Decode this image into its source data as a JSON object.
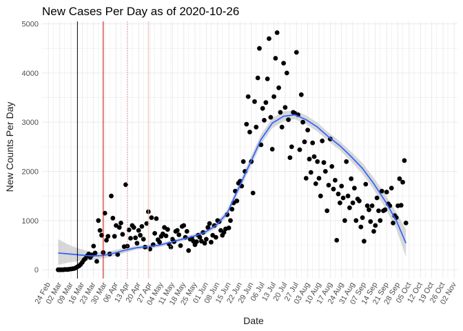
{
  "chart_data": {
    "type": "scatter",
    "title": "New Cases Per Day as of 2020-10-26",
    "xlabel": "Date",
    "ylabel": "New Counts Per Day",
    "xlim": [
      "2020-02-20",
      "2020-11-04"
    ],
    "ylim": [
      -180,
      5050
    ],
    "y_ticks": [
      0,
      1000,
      2000,
      3000,
      4000,
      5000
    ],
    "x_ticks": [
      {
        "date": "2020-02-24",
        "label": "24 Feb"
      },
      {
        "date": "2020-03-02",
        "label": "02 Mar"
      },
      {
        "date": "2020-03-09",
        "label": "09 Mar"
      },
      {
        "date": "2020-03-16",
        "label": "16 Mar"
      },
      {
        "date": "2020-03-23",
        "label": "23 Mar"
      },
      {
        "date": "2020-03-30",
        "label": "30 Mar"
      },
      {
        "date": "2020-04-06",
        "label": "06 Apr"
      },
      {
        "date": "2020-04-13",
        "label": "13 Apr"
      },
      {
        "date": "2020-04-20",
        "label": "20 Apr"
      },
      {
        "date": "2020-04-27",
        "label": "27 Apr"
      },
      {
        "date": "2020-05-04",
        "label": "04 May"
      },
      {
        "date": "2020-05-11",
        "label": "11 May"
      },
      {
        "date": "2020-05-18",
        "label": "18 May"
      },
      {
        "date": "2020-05-25",
        "label": "25 May"
      },
      {
        "date": "2020-06-01",
        "label": "01 Jun"
      },
      {
        "date": "2020-06-08",
        "label": "08 Jun"
      },
      {
        "date": "2020-06-15",
        "label": "15 Jun"
      },
      {
        "date": "2020-06-22",
        "label": "22 Jun"
      },
      {
        "date": "2020-06-29",
        "label": "29 Jun"
      },
      {
        "date": "2020-07-06",
        "label": "06 Jul"
      },
      {
        "date": "2020-07-13",
        "label": "13 Jul"
      },
      {
        "date": "2020-07-20",
        "label": "20 Jul"
      },
      {
        "date": "2020-07-27",
        "label": "27 Jul"
      },
      {
        "date": "2020-08-03",
        "label": "03 Aug"
      },
      {
        "date": "2020-08-10",
        "label": "10 Aug"
      },
      {
        "date": "2020-08-17",
        "label": "17 Aug"
      },
      {
        "date": "2020-08-24",
        "label": "24 Aug"
      },
      {
        "date": "2020-08-31",
        "label": "31 Aug"
      },
      {
        "date": "2020-09-07",
        "label": "07 Sep"
      },
      {
        "date": "2020-09-14",
        "label": "14 Sep"
      },
      {
        "date": "2020-09-21",
        "label": "21 Sep"
      },
      {
        "date": "2020-09-28",
        "label": "28 Sep"
      },
      {
        "date": "2020-10-05",
        "label": "05 Oct"
      },
      {
        "date": "2020-10-12",
        "label": "12 Oct"
      },
      {
        "date": "2020-10-19",
        "label": "19 Oct"
      },
      {
        "date": "2020-10-26",
        "label": "26 Oct"
      },
      {
        "date": "2020-11-02",
        "label": "02 Nov"
      }
    ],
    "grid": true,
    "legend": "none",
    "colors": {
      "points": "#000000",
      "smooth_line": "#3366FF",
      "smooth_band": "#BEBEBE",
      "grid": "#EBEBEB",
      "vline_black": "#000000",
      "vline_red": "#CC0000",
      "vline_dotted": "#E07B7B",
      "vline_pink": "#F2B6B6",
      "vline_faint": "#E4E4E4"
    },
    "vertical_lines": [
      {
        "date": "2020-03-13",
        "color": "vline_black",
        "style": "solid"
      },
      {
        "date": "2020-03-29",
        "color": "vline_red",
        "style": "solid"
      },
      {
        "date": "2020-04-13",
        "color": "vline_dotted",
        "style": "dotted"
      },
      {
        "date": "2020-04-26",
        "color": "vline_pink",
        "style": "solid"
      },
      {
        "date": "2020-05-10",
        "color": "vline_faint",
        "style": "dotted"
      }
    ],
    "points": [
      {
        "x": "2020-03-01",
        "y": 0
      },
      {
        "x": "2020-03-02",
        "y": 0
      },
      {
        "x": "2020-03-03",
        "y": 0
      },
      {
        "x": "2020-03-04",
        "y": 0
      },
      {
        "x": "2020-03-05",
        "y": 5
      },
      {
        "x": "2020-03-06",
        "y": 5
      },
      {
        "x": "2020-03-07",
        "y": 5
      },
      {
        "x": "2020-03-08",
        "y": 10
      },
      {
        "x": "2020-03-09",
        "y": 15
      },
      {
        "x": "2020-03-10",
        "y": 20
      },
      {
        "x": "2020-03-11",
        "y": 25
      },
      {
        "x": "2020-03-12",
        "y": 40
      },
      {
        "x": "2020-03-13",
        "y": 60
      },
      {
        "x": "2020-03-14",
        "y": 80
      },
      {
        "x": "2020-03-15",
        "y": 110
      },
      {
        "x": "2020-03-16",
        "y": 150
      },
      {
        "x": "2020-03-17",
        "y": 200
      },
      {
        "x": "2020-03-18",
        "y": 230
      },
      {
        "x": "2020-03-19",
        "y": 280
      },
      {
        "x": "2020-03-20",
        "y": 320
      },
      {
        "x": "2020-03-21",
        "y": 250
      },
      {
        "x": "2020-03-22",
        "y": 300
      },
      {
        "x": "2020-03-23",
        "y": 480
      },
      {
        "x": "2020-03-24",
        "y": 340
      },
      {
        "x": "2020-03-25",
        "y": 170
      },
      {
        "x": "2020-03-26",
        "y": 1000
      },
      {
        "x": "2020-03-27",
        "y": 800
      },
      {
        "x": "2020-03-28",
        "y": 700
      },
      {
        "x": "2020-03-29",
        "y": 350
      },
      {
        "x": "2020-03-30",
        "y": 1150
      },
      {
        "x": "2020-03-31",
        "y": 600
      },
      {
        "x": "2020-04-01",
        "y": 680
      },
      {
        "x": "2020-04-02",
        "y": 320
      },
      {
        "x": "2020-04-03",
        "y": 1500
      },
      {
        "x": "2020-04-04",
        "y": 1050
      },
      {
        "x": "2020-04-05",
        "y": 680
      },
      {
        "x": "2020-04-06",
        "y": 900
      },
      {
        "x": "2020-04-07",
        "y": 310
      },
      {
        "x": "2020-04-08",
        "y": 860
      },
      {
        "x": "2020-04-09",
        "y": 950
      },
      {
        "x": "2020-04-10",
        "y": 720
      },
      {
        "x": "2020-04-11",
        "y": 470
      },
      {
        "x": "2020-04-12",
        "y": 1730
      },
      {
        "x": "2020-04-13",
        "y": 480
      },
      {
        "x": "2020-04-14",
        "y": 810
      },
      {
        "x": "2020-04-15",
        "y": 640
      },
      {
        "x": "2020-04-16",
        "y": 900
      },
      {
        "x": "2020-04-17",
        "y": 860
      },
      {
        "x": "2020-04-18",
        "y": 650
      },
      {
        "x": "2020-04-19",
        "y": 540
      },
      {
        "x": "2020-04-20",
        "y": 800
      },
      {
        "x": "2020-04-21",
        "y": 700
      },
      {
        "x": "2020-04-22",
        "y": 880
      },
      {
        "x": "2020-04-23",
        "y": 620
      },
      {
        "x": "2020-04-24",
        "y": 460
      },
      {
        "x": "2020-04-25",
        "y": 940
      },
      {
        "x": "2020-04-26",
        "y": 1180
      },
      {
        "x": "2020-04-27",
        "y": 420
      },
      {
        "x": "2020-04-28",
        "y": 1060
      },
      {
        "x": "2020-04-29",
        "y": 510
      },
      {
        "x": "2020-04-30",
        "y": 740
      },
      {
        "x": "2020-05-01",
        "y": 1040
      },
      {
        "x": "2020-05-02",
        "y": 610
      },
      {
        "x": "2020-05-03",
        "y": 560
      },
      {
        "x": "2020-05-04",
        "y": 680
      },
      {
        "x": "2020-05-05",
        "y": 730
      },
      {
        "x": "2020-05-06",
        "y": 860
      },
      {
        "x": "2020-05-07",
        "y": 690
      },
      {
        "x": "2020-05-08",
        "y": 820
      },
      {
        "x": "2020-05-09",
        "y": 520
      },
      {
        "x": "2020-05-10",
        "y": 460
      },
      {
        "x": "2020-05-11",
        "y": 620
      },
      {
        "x": "2020-05-12",
        "y": 570
      },
      {
        "x": "2020-05-13",
        "y": 780
      },
      {
        "x": "2020-05-14",
        "y": 800
      },
      {
        "x": "2020-05-15",
        "y": 710
      },
      {
        "x": "2020-05-16",
        "y": 490
      },
      {
        "x": "2020-05-17",
        "y": 880
      },
      {
        "x": "2020-05-18",
        "y": 900
      },
      {
        "x": "2020-05-19",
        "y": 660
      },
      {
        "x": "2020-05-20",
        "y": 780
      },
      {
        "x": "2020-05-21",
        "y": 390
      },
      {
        "x": "2020-05-22",
        "y": 620
      },
      {
        "x": "2020-05-23",
        "y": 640
      },
      {
        "x": "2020-05-24",
        "y": 580
      },
      {
        "x": "2020-05-25",
        "y": 510
      },
      {
        "x": "2020-05-26",
        "y": 570
      },
      {
        "x": "2020-05-27",
        "y": 700
      },
      {
        "x": "2020-05-28",
        "y": 660
      },
      {
        "x": "2020-05-29",
        "y": 580
      },
      {
        "x": "2020-05-30",
        "y": 760
      },
      {
        "x": "2020-05-31",
        "y": 540
      },
      {
        "x": "2020-06-01",
        "y": 620
      },
      {
        "x": "2020-06-02",
        "y": 860
      },
      {
        "x": "2020-06-03",
        "y": 940
      },
      {
        "x": "2020-06-04",
        "y": 560
      },
      {
        "x": "2020-06-05",
        "y": 700
      },
      {
        "x": "2020-06-06",
        "y": 900
      },
      {
        "x": "2020-06-07",
        "y": 660
      },
      {
        "x": "2020-06-08",
        "y": 1000
      },
      {
        "x": "2020-06-09",
        "y": 980
      },
      {
        "x": "2020-06-10",
        "y": 800
      },
      {
        "x": "2020-06-11",
        "y": 700
      },
      {
        "x": "2020-06-12",
        "y": 760
      },
      {
        "x": "2020-06-13",
        "y": 830
      },
      {
        "x": "2020-06-14",
        "y": 1120
      },
      {
        "x": "2020-06-15",
        "y": 850
      },
      {
        "x": "2020-06-16",
        "y": 1000
      },
      {
        "x": "2020-06-17",
        "y": 1230
      },
      {
        "x": "2020-06-18",
        "y": 1360
      },
      {
        "x": "2020-06-19",
        "y": 1600
      },
      {
        "x": "2020-06-20",
        "y": 1400
      },
      {
        "x": "2020-06-21",
        "y": 1760
      },
      {
        "x": "2020-06-22",
        "y": 1800
      },
      {
        "x": "2020-06-23",
        "y": 1700
      },
      {
        "x": "2020-06-24",
        "y": 2200
      },
      {
        "x": "2020-06-25",
        "y": 2000
      },
      {
        "x": "2020-06-26",
        "y": 2960
      },
      {
        "x": "2020-06-27",
        "y": 3520
      },
      {
        "x": "2020-06-28",
        "y": 2800
      },
      {
        "x": "2020-06-29",
        "y": 2200
      },
      {
        "x": "2020-06-30",
        "y": 1560
      },
      {
        "x": "2020-07-01",
        "y": 3420
      },
      {
        "x": "2020-07-02",
        "y": 2900
      },
      {
        "x": "2020-07-03",
        "y": 3900
      },
      {
        "x": "2020-07-04",
        "y": 4500
      },
      {
        "x": "2020-07-05",
        "y": 2540
      },
      {
        "x": "2020-07-06",
        "y": 3280
      },
      {
        "x": "2020-07-07",
        "y": 3040
      },
      {
        "x": "2020-07-08",
        "y": 3400
      },
      {
        "x": "2020-07-09",
        "y": 3880
      },
      {
        "x": "2020-07-10",
        "y": 4700
      },
      {
        "x": "2020-07-11",
        "y": 3100
      },
      {
        "x": "2020-07-12",
        "y": 2450
      },
      {
        "x": "2020-07-13",
        "y": 3520
      },
      {
        "x": "2020-07-14",
        "y": 4300
      },
      {
        "x": "2020-07-15",
        "y": 4820
      },
      {
        "x": "2020-07-16",
        "y": 3700
      },
      {
        "x": "2020-07-17",
        "y": 3200
      },
      {
        "x": "2020-07-18",
        "y": 2900
      },
      {
        "x": "2020-07-19",
        "y": 4200
      },
      {
        "x": "2020-07-20",
        "y": 3300
      },
      {
        "x": "2020-07-21",
        "y": 4000
      },
      {
        "x": "2020-07-22",
        "y": 3050
      },
      {
        "x": "2020-07-23",
        "y": 2280
      },
      {
        "x": "2020-07-24",
        "y": 2500
      },
      {
        "x": "2020-07-25",
        "y": 3200
      },
      {
        "x": "2020-07-26",
        "y": 3180
      },
      {
        "x": "2020-07-27",
        "y": 4420
      },
      {
        "x": "2020-07-28",
        "y": 3150
      },
      {
        "x": "2020-07-29",
        "y": 2440
      },
      {
        "x": "2020-07-30",
        "y": 3560
      },
      {
        "x": "2020-07-31",
        "y": 3000
      },
      {
        "x": "2020-08-01",
        "y": 2600
      },
      {
        "x": "2020-08-02",
        "y": 1860
      },
      {
        "x": "2020-08-03",
        "y": 2840
      },
      {
        "x": "2020-08-04",
        "y": 2250
      },
      {
        "x": "2020-08-05",
        "y": 1980
      },
      {
        "x": "2020-08-06",
        "y": 2580
      },
      {
        "x": "2020-08-07",
        "y": 2300
      },
      {
        "x": "2020-08-08",
        "y": 1750
      },
      {
        "x": "2020-08-09",
        "y": 2200
      },
      {
        "x": "2020-08-10",
        "y": 1860
      },
      {
        "x": "2020-08-11",
        "y": 1500
      },
      {
        "x": "2020-08-12",
        "y": 2620
      },
      {
        "x": "2020-08-13",
        "y": 2180
      },
      {
        "x": "2020-08-14",
        "y": 2000
      },
      {
        "x": "2020-08-15",
        "y": 1200
      },
      {
        "x": "2020-08-16",
        "y": 1720
      },
      {
        "x": "2020-08-17",
        "y": 2660
      },
      {
        "x": "2020-08-18",
        "y": 2100
      },
      {
        "x": "2020-08-19",
        "y": 1640
      },
      {
        "x": "2020-08-20",
        "y": 1820
      },
      {
        "x": "2020-08-21",
        "y": 600
      },
      {
        "x": "2020-08-22",
        "y": 1540
      },
      {
        "x": "2020-08-23",
        "y": 1360
      },
      {
        "x": "2020-08-24",
        "y": 1700
      },
      {
        "x": "2020-08-25",
        "y": 1460
      },
      {
        "x": "2020-08-26",
        "y": 1000
      },
      {
        "x": "2020-08-27",
        "y": 2200
      },
      {
        "x": "2020-08-28",
        "y": 1500
      },
      {
        "x": "2020-08-29",
        "y": 1260
      },
      {
        "x": "2020-08-30",
        "y": 1850
      },
      {
        "x": "2020-08-31",
        "y": 1360
      },
      {
        "x": "2020-09-01",
        "y": 1660
      },
      {
        "x": "2020-09-02",
        "y": 1000
      },
      {
        "x": "2020-09-03",
        "y": 1440
      },
      {
        "x": "2020-09-04",
        "y": 1400
      },
      {
        "x": "2020-09-05",
        "y": 870
      },
      {
        "x": "2020-09-06",
        "y": 1060
      },
      {
        "x": "2020-09-07",
        "y": 580
      },
      {
        "x": "2020-09-08",
        "y": 1740
      },
      {
        "x": "2020-09-09",
        "y": 1300
      },
      {
        "x": "2020-09-10",
        "y": 1220
      },
      {
        "x": "2020-09-11",
        "y": 980
      },
      {
        "x": "2020-09-12",
        "y": 1300
      },
      {
        "x": "2020-09-13",
        "y": 780
      },
      {
        "x": "2020-09-14",
        "y": 900
      },
      {
        "x": "2020-09-15",
        "y": 1460
      },
      {
        "x": "2020-09-16",
        "y": 1200
      },
      {
        "x": "2020-09-17",
        "y": 1000
      },
      {
        "x": "2020-09-18",
        "y": 1600
      },
      {
        "x": "2020-09-19",
        "y": 1200
      },
      {
        "x": "2020-09-20",
        "y": 1220
      },
      {
        "x": "2020-09-21",
        "y": 1580
      },
      {
        "x": "2020-09-22",
        "y": 1340
      },
      {
        "x": "2020-09-23",
        "y": 1300
      },
      {
        "x": "2020-09-24",
        "y": 1660
      },
      {
        "x": "2020-09-25",
        "y": 950
      },
      {
        "x": "2020-09-26",
        "y": 1100
      },
      {
        "x": "2020-09-27",
        "y": 1060
      },
      {
        "x": "2020-09-28",
        "y": 1300
      },
      {
        "x": "2020-09-29",
        "y": 1850
      },
      {
        "x": "2020-09-30",
        "y": 1310
      },
      {
        "x": "2020-10-01",
        "y": 1780
      },
      {
        "x": "2020-10-02",
        "y": 2220
      },
      {
        "x": "2020-10-03",
        "y": 950
      }
    ],
    "smooth": {
      "x": [
        "2020-03-01",
        "2020-03-08",
        "2020-03-15",
        "2020-03-22",
        "2020-03-29",
        "2020-04-05",
        "2020-04-12",
        "2020-04-19",
        "2020-04-26",
        "2020-05-03",
        "2020-05-10",
        "2020-05-17",
        "2020-05-24",
        "2020-05-31",
        "2020-06-07",
        "2020-06-14",
        "2020-06-21",
        "2020-06-28",
        "2020-07-05",
        "2020-07-12",
        "2020-07-19",
        "2020-07-26",
        "2020-08-02",
        "2020-08-09",
        "2020-08-16",
        "2020-08-23",
        "2020-08-30",
        "2020-09-06",
        "2020-09-13",
        "2020-09-20",
        "2020-09-27",
        "2020-10-03"
      ],
      "y": [
        340,
        320,
        300,
        280,
        290,
        340,
        400,
        450,
        470,
        500,
        560,
        620,
        680,
        760,
        900,
        1150,
        1650,
        2150,
        2650,
        2980,
        3120,
        3150,
        3050,
        2900,
        2700,
        2520,
        2300,
        2060,
        1750,
        1400,
        1000,
        540
      ],
      "lower": [
        100,
        150,
        180,
        200,
        230,
        280,
        350,
        410,
        430,
        460,
        520,
        580,
        640,
        710,
        840,
        1080,
        1560,
        2050,
        2550,
        2880,
        3020,
        3060,
        2960,
        2810,
        2610,
        2430,
        2200,
        1950,
        1630,
        1260,
        830,
        260
      ],
      "upper": [
        620,
        500,
        420,
        360,
        350,
        400,
        450,
        490,
        510,
        540,
        600,
        660,
        720,
        810,
        960,
        1220,
        1740,
        2250,
        2750,
        3080,
        3220,
        3240,
        3140,
        2990,
        2790,
        2610,
        2400,
        2170,
        1870,
        1540,
        1170,
        820
      ]
    }
  }
}
